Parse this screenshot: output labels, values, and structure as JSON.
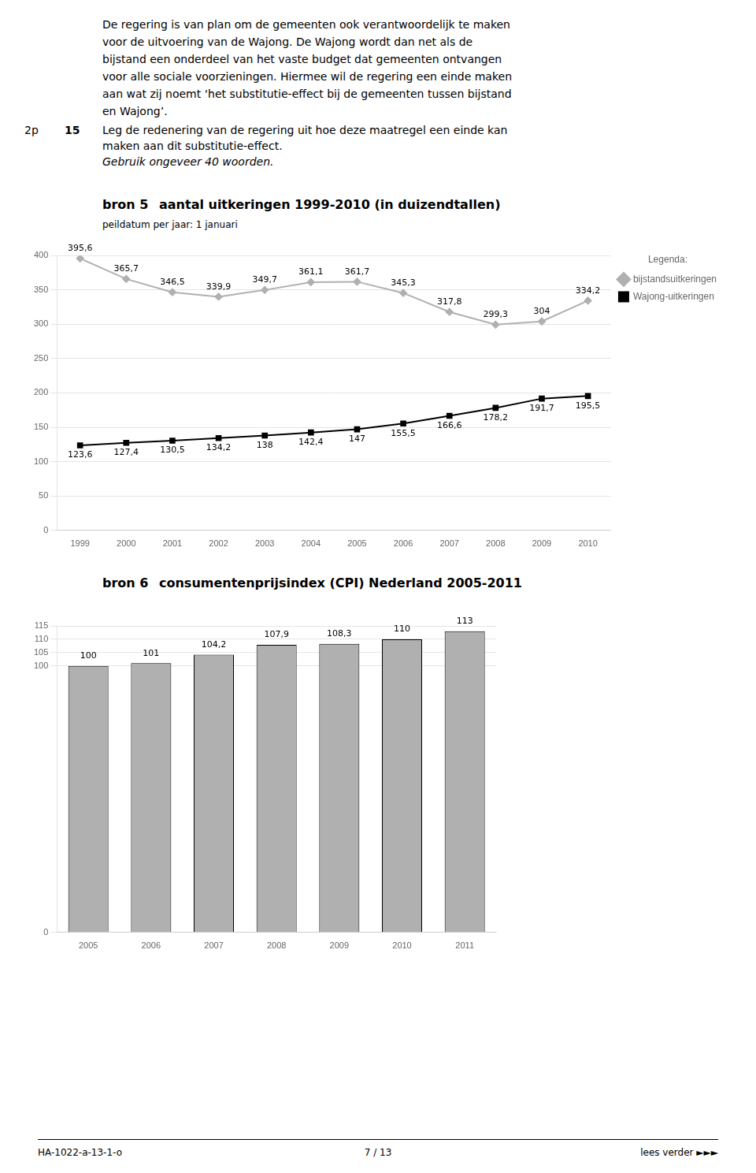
{
  "chart_data": [
    {
      "type": "line",
      "title": "aantal uitkeringen 1999-2010 (in duizendtallen)",
      "subtitle": "peildatum per jaar: 1 januari",
      "annotations": [
        "De regering is van plan om de gemeenten ook verantwoordelijk te maken",
        "voor de uitvoering van de Wajong. De Wajong wordt dan net als de",
        "bijstand een onderdeel van het vaste budget dat gemeenten ontvangen",
        "voor alle sociale voorzieningen. Hiermee wil de regering een einde maken",
        "aan wat zij noemt ‘het substitutie-effect bij de gemeenten tussen bijstand",
        "en Wajong’.",
        "2p",
        "15",
        "Leg de redenering van de regering uit hoe deze maatregel een einde kan",
        "maken aan dit substitutie-effect.",
        "Gebruik ongeveer 40 woorden.",
        "bron 5",
        "Legenda:"
      ],
      "categories": [
        "1999",
        "2000",
        "2001",
        "2002",
        "2003",
        "2004",
        "2005",
        "2006",
        "2007",
        "2008",
        "2009",
        "2010"
      ],
      "series": [
        {
          "name": "bijstandsuitkeringen",
          "color": "#b0b0b0",
          "marker": "diamond",
          "values": [
            395.6,
            365.7,
            346.5,
            339.9,
            349.7,
            361.1,
            361.7,
            345.3,
            317.8,
            299.3,
            304.0,
            334.2
          ],
          "value_labels": [
            "395,6",
            "365,7",
            "346,5",
            "339,9",
            "349,7",
            "361,1",
            "361,7",
            "345,3",
            "317,8",
            "299,3",
            "304",
            "334,2"
          ]
        },
        {
          "name": "Wajong-uitkeringen",
          "color": "#000000",
          "marker": "square",
          "values": [
            123.6,
            127.4,
            130.5,
            134.2,
            138.0,
            142.4,
            147.0,
            155.5,
            166.6,
            178.2,
            191.7,
            195.5
          ],
          "value_labels": [
            "123,6",
            "127,4",
            "130,5",
            "134,2",
            "138",
            "142,4",
            "147",
            "155,5",
            "166,6",
            "178,2",
            "191,7",
            "195,5"
          ]
        }
      ],
      "ylim": [
        0,
        400
      ],
      "yticks": [
        0,
        50,
        100,
        150,
        200,
        250,
        300,
        350,
        400
      ],
      "grid": true,
      "legend": "right",
      "data_labels": true
    },
    {
      "type": "bar",
      "title": "consumentenprijsindex (CPI) Nederland 2005-2011",
      "annotations": [
        "bron 6",
        "HA-1022-a-13-1-o",
        "7 / 13",
        "lees verder ►►►"
      ],
      "categories": [
        "2005",
        "2006",
        "2007",
        "2008",
        "2009",
        "2010",
        "2011"
      ],
      "values": [
        100.0,
        101.0,
        104.2,
        107.9,
        108.3,
        110.0,
        113.0
      ],
      "value_labels": [
        "100",
        "101",
        "104,2",
        "107,9",
        "108,3",
        "110",
        "113"
      ],
      "color": "#b0b0b0",
      "ylim": [
        0,
        115
      ],
      "yticks": [
        0,
        100,
        105,
        110,
        115
      ],
      "grid": true,
      "data_labels": true
    }
  ]
}
